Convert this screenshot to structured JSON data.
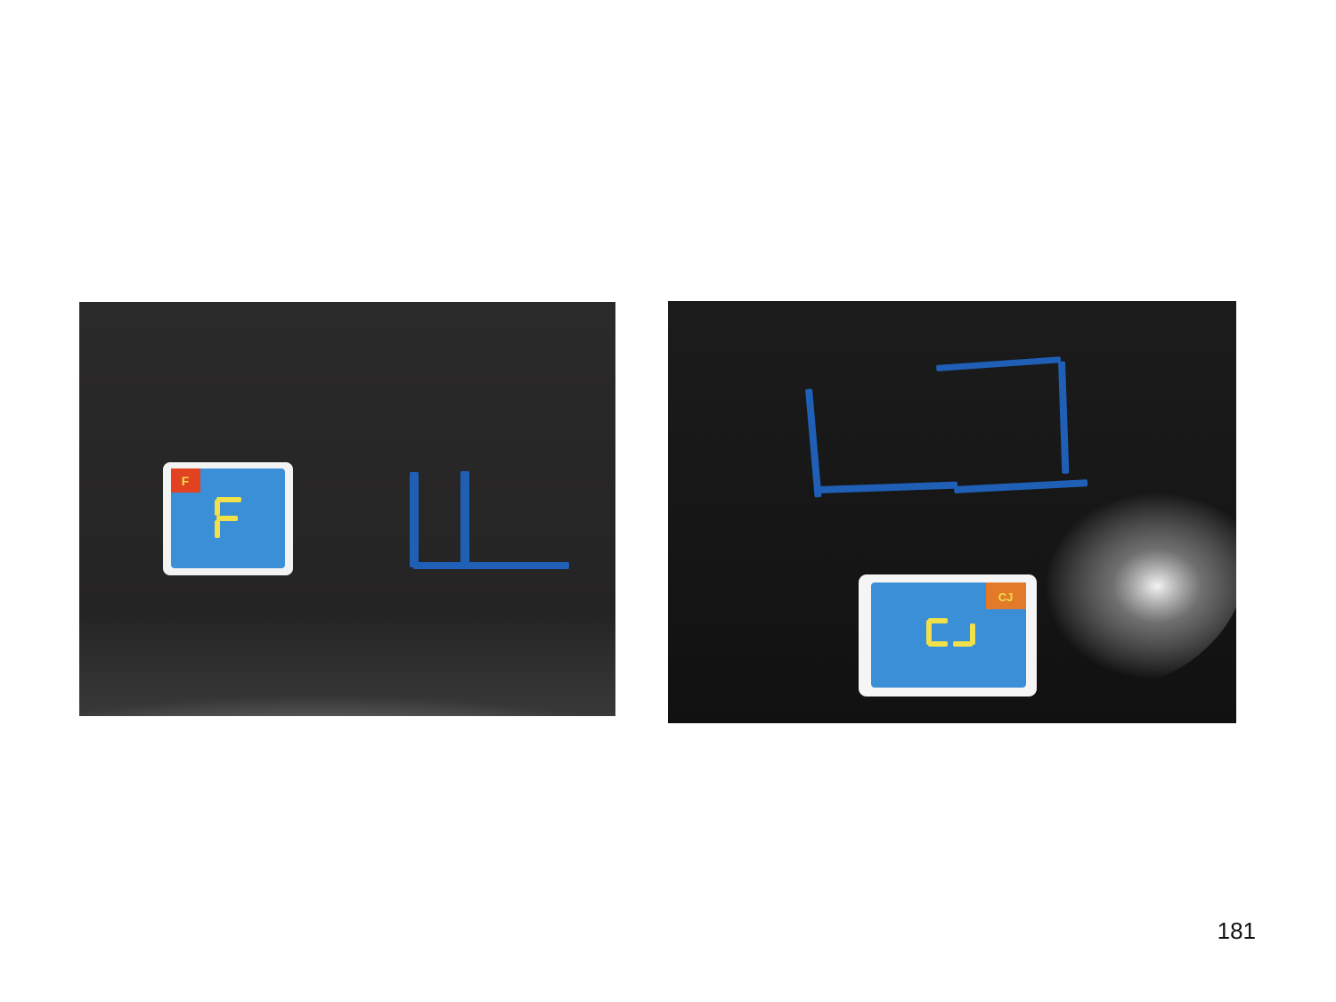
{
  "slide": {
    "page_number": "181"
  },
  "photos": [
    {
      "card_symbol": "F",
      "card_badge": "F",
      "colors": {
        "tabletop": "#2a2828",
        "stick": "#1f5fb5",
        "card": "#3a8fd6",
        "digit": "#f1e04a",
        "badge": "#e2421f"
      }
    },
    {
      "card_symbol": "CJ",
      "card_badge": "CJ",
      "colors": {
        "tabletop": "#181818",
        "stick": "#1f5fb5",
        "card": "#3a8fd6",
        "digit": "#f1e04a",
        "badge": "#e27a2a"
      }
    }
  ]
}
